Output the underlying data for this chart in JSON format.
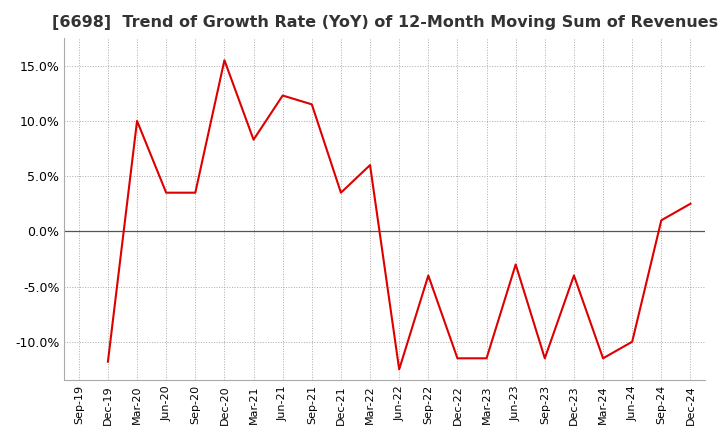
{
  "title": "[6698]  Trend of Growth Rate (YoY) of 12-Month Moving Sum of Revenues",
  "title_fontsize": 11.5,
  "line_color": "#dd0000",
  "background_color": "#ffffff",
  "grid_color": "#aaaaaa",
  "ylim": [
    -0.135,
    0.175
  ],
  "yticks": [
    -0.1,
    -0.05,
    0.0,
    0.05,
    0.1,
    0.15
  ],
  "x_labels": [
    "Sep-19",
    "Dec-19",
    "Mar-20",
    "Jun-20",
    "Sep-20",
    "Dec-20",
    "Mar-21",
    "Jun-21",
    "Sep-21",
    "Dec-21",
    "Mar-22",
    "Jun-22",
    "Sep-22",
    "Dec-22",
    "Mar-23",
    "Jun-23",
    "Sep-23",
    "Dec-23",
    "Mar-24",
    "Jun-24",
    "Sep-24",
    "Dec-24"
  ],
  "values": [
    null,
    -0.118,
    0.1,
    0.035,
    0.035,
    0.155,
    0.083,
    0.123,
    0.115,
    0.035,
    0.06,
    -0.125,
    -0.04,
    -0.115,
    -0.115,
    -0.03,
    -0.115,
    -0.04,
    -0.115,
    -0.1,
    0.01,
    0.025
  ]
}
